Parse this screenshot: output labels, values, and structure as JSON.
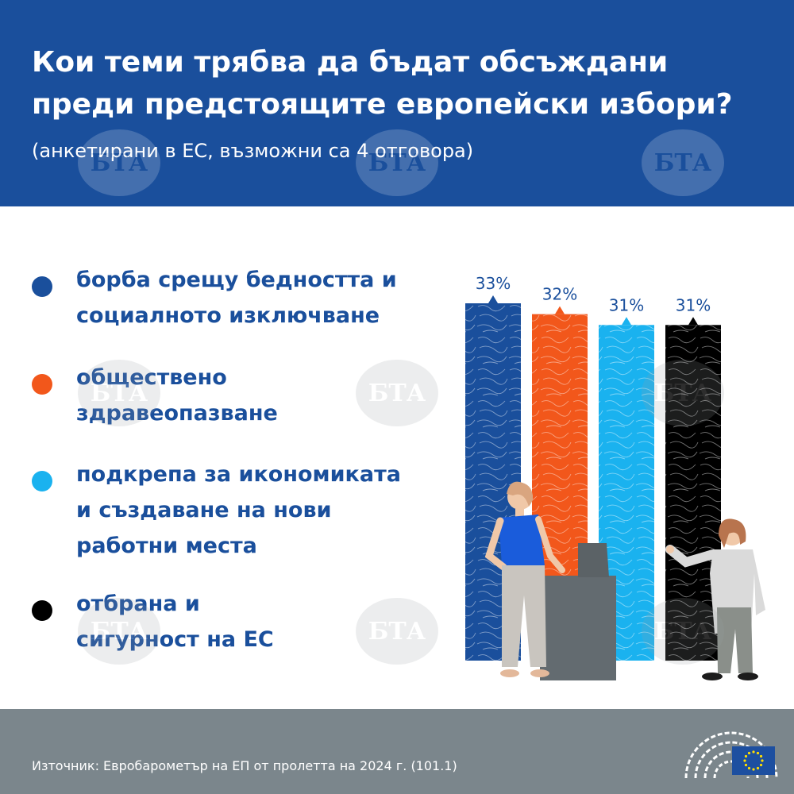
{
  "header": {
    "title": "Кои теми трябва да бъдат обсъждани преди предстоящите европейски избори?",
    "subtitle": "(анкетирани в ЕС, възможни са 4 отговора)"
  },
  "legend": [
    {
      "label": "борба срещу бедността и\nсоциалното изключване",
      "color": "#1a4f9c"
    },
    {
      "label": "обществено\nздравеопазване",
      "color": "#f2571b"
    },
    {
      "label": "подкрепа за икономиката\nи създаване на нови\nработни места",
      "color": "#1ab2ef"
    },
    {
      "label": "отбрана и\nсигурност на ЕС",
      "color": "#000000"
    }
  ],
  "chart_data": {
    "type": "bar",
    "categories": [
      "борба срещу бедността и социалното изключване",
      "обществено здравеопазване",
      "подкрепа за икономиката и създаване на нови работни места",
      "отбрана и сигурност на ЕС"
    ],
    "values": [
      33,
      32,
      31,
      31
    ],
    "value_labels": [
      "33%",
      "32%",
      "31%",
      "31%"
    ],
    "colors": [
      "#1a4f9c",
      "#f2571b",
      "#1ab2ef",
      "#000000"
    ],
    "unit": "%",
    "grid": false,
    "legend_position": "left"
  },
  "footer": {
    "source": "Източник: Евробарометър на ЕП от пролетта на 2024 г. (101.1)"
  },
  "watermark_text": "БТА",
  "header_color": "#1a4f9c",
  "footer_color": "#7b868c",
  "icons": [
    "european-parliament-icon",
    "eu-flag-icon",
    "bta-watermark-icon"
  ]
}
